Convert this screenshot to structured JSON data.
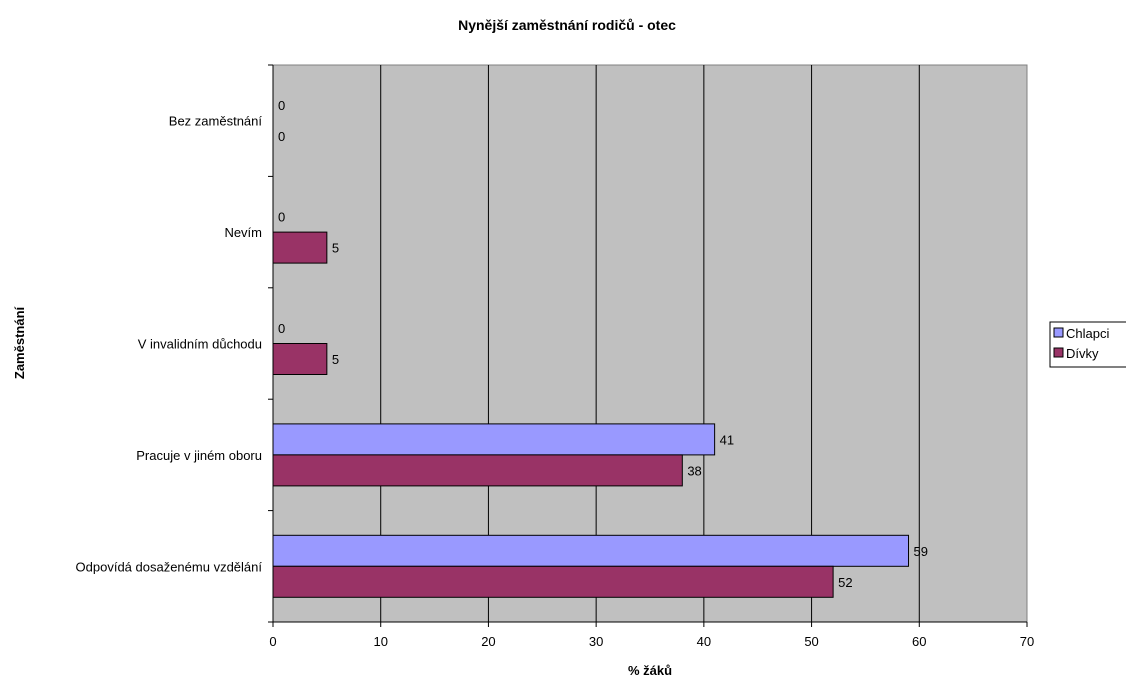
{
  "chart_data": {
    "type": "bar",
    "orientation": "horizontal",
    "title": "Nynější zaměstnání rodičů - otec",
    "xlabel": "% žáků",
    "ylabel": "Zaměstnání",
    "xlim": [
      0,
      70
    ],
    "xticks": [
      "0",
      "10",
      "20",
      "30",
      "40",
      "50",
      "60",
      "70"
    ],
    "grid": true,
    "legend_position": "right",
    "categories": [
      "Bez zaměstnání",
      "Nevím",
      "V invalidním důchodu",
      "Pracuje v jiném oboru",
      "Odpovídá dosaženému vzdělání"
    ],
    "series": [
      {
        "name": "Chlapci",
        "color": "#9999ff",
        "values": [
          0,
          0,
          0,
          41,
          59
        ]
      },
      {
        "name": "Dívky",
        "color": "#993366",
        "values": [
          0,
          5,
          5,
          38,
          52
        ]
      }
    ],
    "plot_background": "#c0c0c0"
  }
}
